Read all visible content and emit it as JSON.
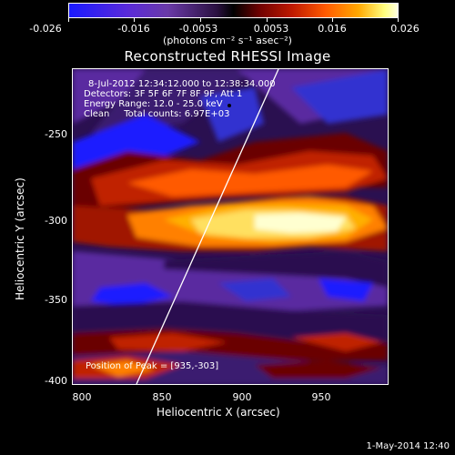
{
  "colorbar": {
    "tick_labels": [
      "-0.026",
      "-0.016",
      "-0.0053",
      "0.0053",
      "0.016",
      "0.026"
    ],
    "units": "(photons cm⁻² s⁻¹ asec⁻²)"
  },
  "title": "Reconstructed RHESSI Image",
  "info": {
    "line1": "8-Jul-2012 12:34:12.000 to 12:38:34.000",
    "line2": "Detectors: 3F 5F 6F 7F 8F 9F, Att 1",
    "line3": "Energy Range: 12.0 - 25.0 keV",
    "line4": "Clean     Total counts: 6.97E+03",
    "peak": "Position of Peak = [935,-303]"
  },
  "axes": {
    "xlabel": "Heliocentric X (arcsec)",
    "ylabel": "Heliocentric Y (arcsec)",
    "xticks": [
      "800",
      "850",
      "900",
      "950"
    ],
    "yticks": [
      "-250",
      "-300",
      "-350",
      "-400"
    ]
  },
  "date_stamp": "1-May-2014 12:40",
  "colors": {
    "background": "#000000",
    "negative": "#1a1aff",
    "positive": "#ffffc0"
  }
}
